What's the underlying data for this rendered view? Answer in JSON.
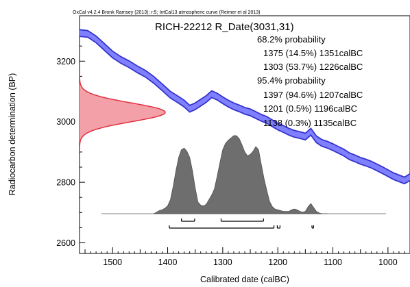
{
  "chart_data": {
    "type": "area",
    "header": "OxCal v4.2.4 Bronk Ramsey (2013); r:5; IntCal13 atmospheric curve (Reimer et al 2013)",
    "title": "RICH-22212 R_Date(3031,31)",
    "xlabel": "Calibrated date (calBC)",
    "ylabel": "Radiocarbon determination (BP)",
    "x_direction": "descending",
    "xlim": [
      1560,
      960
    ],
    "ylim": [
      2565,
      3350
    ],
    "x_ticks": [
      "1500",
      "1400",
      "1300",
      "1200",
      "1100",
      "1000"
    ],
    "y_ticks": [
      "3200",
      "3000",
      "2800",
      "2600"
    ],
    "x_tick_values": [
      1500,
      1400,
      1300,
      1200,
      1100,
      1000
    ],
    "y_tick_values": [
      3200,
      3000,
      2800,
      2600
    ],
    "colors": {
      "calibration_curve": "#3333cc",
      "calibration_band": "#8080ff",
      "radiocarbon_date": "#e03040",
      "radiocarbon_fill": "#f4a0a8",
      "posterior": "#6e6e6e",
      "posterior_edge": "#505050"
    },
    "probability_summary": [
      {
        "heading": "68.2% probability",
        "ranges": [
          "1375 (14.5%) 1351calBC",
          "1303 (53.7%) 1226calBC"
        ]
      },
      {
        "heading": "95.4% probability",
        "ranges": [
          "1397 (94.6%) 1207calBC",
          "1201 (0.5%) 1196calBC",
          "1138 (0.3%) 1135calBC"
        ]
      }
    ],
    "calibration_curve": {
      "x": [
        1560,
        1545,
        1530,
        1515,
        1500,
        1485,
        1470,
        1455,
        1440,
        1425,
        1410,
        1395,
        1380,
        1370,
        1360,
        1350,
        1340,
        1330,
        1320,
        1310,
        1300,
        1290,
        1280,
        1270,
        1260,
        1250,
        1240,
        1230,
        1220,
        1210,
        1200,
        1190,
        1180,
        1170,
        1160,
        1150,
        1140,
        1130,
        1120,
        1110,
        1100,
        1090,
        1080,
        1070,
        1060,
        1050,
        1040,
        1030,
        1020,
        1010,
        1000,
        990,
        980,
        970,
        960
      ],
      "y": [
        3293,
        3290,
        3272,
        3247,
        3222,
        3204,
        3190,
        3173,
        3158,
        3138,
        3114,
        3089,
        3072,
        3060,
        3043,
        3051,
        3063,
        3075,
        3091,
        3083,
        3071,
        3060,
        3051,
        3044,
        3036,
        3031,
        3022,
        3013,
        3006,
        2995,
        2984,
        2976,
        2967,
        2960,
        2956,
        2951,
        2967,
        2942,
        2930,
        2924,
        2916,
        2907,
        2898,
        2886,
        2879,
        2871,
        2865,
        2858,
        2849,
        2840,
        2830,
        2820,
        2813,
        2806,
        2817
      ],
      "band_halfwidth_bp": 11
    },
    "radiocarbon_date": {
      "mean_bp": 3031,
      "sigma_bp": 31
    },
    "calibrated_density": {
      "x": [
        1425,
        1420,
        1415,
        1410,
        1405,
        1400,
        1395,
        1390,
        1385,
        1380,
        1375,
        1370,
        1365,
        1360,
        1355,
        1350,
        1345,
        1340,
        1335,
        1330,
        1325,
        1320,
        1315,
        1310,
        1305,
        1300,
        1295,
        1290,
        1285,
        1280,
        1275,
        1270,
        1265,
        1260,
        1255,
        1250,
        1245,
        1240,
        1235,
        1230,
        1225,
        1220,
        1215,
        1210,
        1205,
        1200,
        1195,
        1190,
        1185,
        1180,
        1175,
        1170,
        1165,
        1160,
        1155,
        1150,
        1145,
        1140,
        1135,
        1130,
        1125,
        1120,
        1115,
        1110
      ],
      "density": [
        0,
        0.02,
        0.04,
        0.05,
        0.07,
        0.1,
        0.18,
        0.35,
        0.55,
        0.72,
        0.82,
        0.84,
        0.8,
        0.72,
        0.55,
        0.33,
        0.15,
        0.11,
        0.1,
        0.12,
        0.18,
        0.24,
        0.32,
        0.48,
        0.66,
        0.82,
        0.9,
        0.94,
        0.97,
        1.0,
        1.0,
        0.96,
        0.88,
        0.79,
        0.74,
        0.76,
        0.8,
        0.86,
        0.82,
        0.63,
        0.45,
        0.3,
        0.16,
        0.09,
        0.06,
        0.05,
        0.04,
        0.03,
        0.03,
        0.03,
        0.05,
        0.06,
        0.05,
        0.03,
        0.02,
        0.03,
        0.09,
        0.13,
        0.08,
        0.03,
        0.01,
        0,
        0,
        0
      ]
    },
    "ranges_68": [
      [
        1375,
        1351
      ],
      [
        1303,
        1226
      ]
    ],
    "ranges_95": [
      [
        1397,
        1207
      ],
      [
        1201,
        1196
      ],
      [
        1138,
        1135
      ]
    ],
    "grid": false,
    "legend": "none"
  }
}
